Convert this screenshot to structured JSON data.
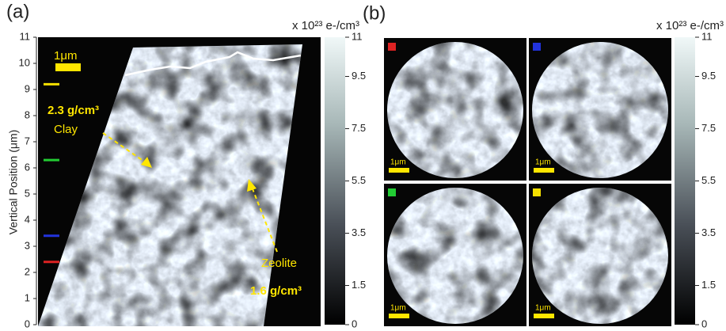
{
  "panel_a": {
    "label": "(a)",
    "y_label": "Vertical Position (μm)",
    "ylim": [
      0,
      11
    ],
    "yticks": [
      0,
      1,
      2,
      3,
      4,
      5,
      6,
      7,
      8,
      9,
      10,
      11
    ],
    "scale_bar": "1μm",
    "slice_markers": [
      {
        "color": "#f5e000",
        "value": 9.2
      },
      {
        "color": "#22cc33",
        "value": 6.3
      },
      {
        "color": "#2233dd",
        "value": 3.4
      },
      {
        "color": "#dd2222",
        "value": 2.4
      }
    ],
    "annotations": {
      "clay_density": "2.3 g/cm³",
      "clay": "Clay",
      "zeolite": "Zeolite",
      "zeolite_density": "1.6 g/cm³"
    },
    "colorbar": {
      "label": "x 10²³ e-/cm³",
      "lim": [
        0,
        11
      ],
      "ticks": [
        0,
        1.5,
        3.5,
        5.5,
        7.5,
        9.5,
        11
      ]
    }
  },
  "panel_b": {
    "label": "(b)",
    "slices": [
      {
        "color": "#dd2222",
        "scale_bar": "1μm"
      },
      {
        "color": "#2233dd",
        "scale_bar": "1μm"
      },
      {
        "color": "#22cc33",
        "scale_bar": "1μm"
      },
      {
        "color": "#f5e000",
        "scale_bar": "1μm"
      }
    ],
    "colorbar": {
      "label": "x 10²³ e-/cm³",
      "lim": [
        0,
        11
      ],
      "ticks": [
        0,
        1.5,
        3.5,
        5.5,
        7.5,
        9.5,
        11
      ]
    }
  }
}
